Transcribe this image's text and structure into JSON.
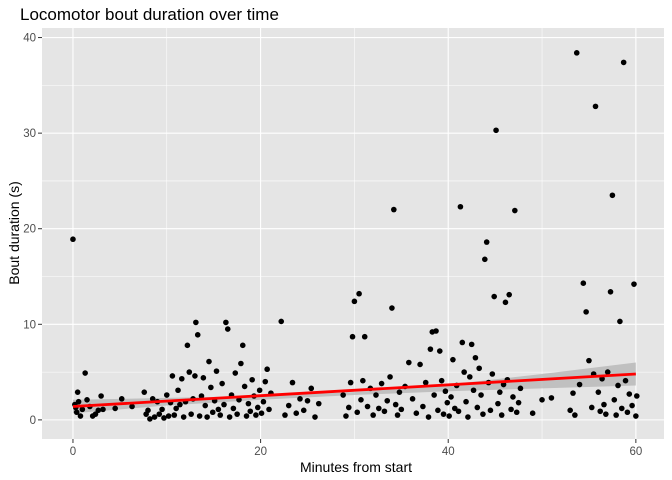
{
  "chart_data": {
    "type": "scatter",
    "title": "Locomotor bout duration over time",
    "xlabel": "Minutes from start",
    "ylabel": "Bout duration (s)",
    "xlim": [
      -3.3,
      63.0
    ],
    "ylim": [
      -2.0,
      41.0
    ],
    "x_ticks": [
      0,
      20,
      40,
      60
    ],
    "y_ticks": [
      0,
      10,
      20,
      30,
      40
    ],
    "grid": true,
    "panel_background": "#e5e5e5",
    "grid_color": "#ffffff",
    "point_color": "#000000",
    "trend_color": "#ff0000",
    "band_color": "#b3b3b3",
    "points": [
      [
        0.0,
        18.9
      ],
      [
        0.2,
        1.6
      ],
      [
        0.3,
        1.3
      ],
      [
        0.4,
        0.8
      ],
      [
        0.5,
        2.9
      ],
      [
        0.6,
        1.9
      ],
      [
        0.8,
        0.4
      ],
      [
        1.0,
        1.1
      ],
      [
        1.3,
        4.9
      ],
      [
        1.5,
        2.1
      ],
      [
        1.8,
        1.4
      ],
      [
        2.1,
        0.4
      ],
      [
        2.4,
        0.6
      ],
      [
        2.7,
        1.0
      ],
      [
        3.0,
        2.5
      ],
      [
        3.2,
        1.1
      ],
      [
        4.5,
        1.2
      ],
      [
        5.2,
        2.2
      ],
      [
        6.3,
        1.4
      ],
      [
        7.6,
        2.9
      ],
      [
        7.8,
        0.6
      ],
      [
        8.0,
        1.0
      ],
      [
        8.2,
        0.1
      ],
      [
        8.5,
        2.2
      ],
      [
        8.7,
        0.3
      ],
      [
        9.0,
        1.9
      ],
      [
        9.2,
        0.6
      ],
      [
        9.5,
        1.1
      ],
      [
        9.7,
        0.2
      ],
      [
        10.0,
        2.6
      ],
      [
        10.2,
        0.4
      ],
      [
        10.4,
        1.8
      ],
      [
        10.6,
        4.6
      ],
      [
        10.8,
        0.5
      ],
      [
        11.0,
        1.2
      ],
      [
        11.2,
        3.1
      ],
      [
        11.4,
        1.6
      ],
      [
        11.6,
        4.3
      ],
      [
        11.8,
        0.3
      ],
      [
        12.0,
        1.9
      ],
      [
        12.2,
        7.8
      ],
      [
        12.4,
        5.0
      ],
      [
        12.6,
        0.6
      ],
      [
        12.8,
        2.2
      ],
      [
        13.0,
        4.6
      ],
      [
        13.1,
        10.2
      ],
      [
        13.3,
        8.9
      ],
      [
        13.5,
        0.4
      ],
      [
        13.7,
        2.5
      ],
      [
        13.9,
        4.4
      ],
      [
        14.1,
        1.5
      ],
      [
        14.3,
        0.3
      ],
      [
        14.5,
        6.1
      ],
      [
        14.7,
        3.4
      ],
      [
        14.9,
        0.8
      ],
      [
        15.1,
        2.0
      ],
      [
        15.3,
        5.1
      ],
      [
        15.5,
        1.1
      ],
      [
        15.7,
        0.5
      ],
      [
        15.9,
        3.8
      ],
      [
        16.1,
        1.6
      ],
      [
        16.3,
        10.2
      ],
      [
        16.5,
        9.5
      ],
      [
        16.7,
        0.3
      ],
      [
        16.9,
        2.6
      ],
      [
        17.1,
        1.2
      ],
      [
        17.3,
        4.9
      ],
      [
        17.5,
        0.6
      ],
      [
        17.7,
        2.1
      ],
      [
        17.9,
        5.9
      ],
      [
        18.1,
        7.8
      ],
      [
        18.3,
        3.5
      ],
      [
        18.5,
        0.4
      ],
      [
        18.7,
        1.7
      ],
      [
        18.9,
        0.9
      ],
      [
        19.1,
        4.2
      ],
      [
        19.3,
        2.5
      ],
      [
        19.5,
        0.5
      ],
      [
        19.7,
        1.3
      ],
      [
        19.9,
        3.1
      ],
      [
        20.1,
        0.7
      ],
      [
        20.3,
        1.9
      ],
      [
        20.5,
        4.0
      ],
      [
        20.7,
        5.3
      ],
      [
        20.9,
        1.1
      ],
      [
        21.1,
        2.8
      ],
      [
        22.2,
        10.3
      ],
      [
        22.6,
        0.5
      ],
      [
        23.0,
        1.5
      ],
      [
        23.4,
        3.9
      ],
      [
        23.8,
        0.7
      ],
      [
        24.2,
        2.2
      ],
      [
        24.6,
        1.0
      ],
      [
        25.0,
        2.0
      ],
      [
        25.4,
        3.3
      ],
      [
        25.8,
        0.3
      ],
      [
        26.2,
        1.7
      ],
      [
        28.8,
        2.6
      ],
      [
        29.1,
        0.4
      ],
      [
        29.4,
        1.3
      ],
      [
        29.6,
        3.9
      ],
      [
        29.8,
        8.7
      ],
      [
        30.0,
        12.4
      ],
      [
        30.3,
        0.8
      ],
      [
        30.5,
        13.2
      ],
      [
        30.7,
        2.1
      ],
      [
        30.9,
        4.1
      ],
      [
        31.1,
        8.7
      ],
      [
        31.4,
        1.4
      ],
      [
        31.7,
        3.3
      ],
      [
        32.0,
        0.5
      ],
      [
        32.3,
        2.6
      ],
      [
        32.6,
        1.2
      ],
      [
        32.9,
        3.8
      ],
      [
        33.2,
        0.9
      ],
      [
        33.5,
        2.0
      ],
      [
        33.8,
        4.5
      ],
      [
        34.0,
        11.7
      ],
      [
        34.2,
        22.0
      ],
      [
        34.4,
        1.6
      ],
      [
        34.6,
        0.5
      ],
      [
        34.8,
        2.9
      ],
      [
        35.0,
        1.1
      ],
      [
        35.4,
        3.5
      ],
      [
        35.8,
        6.0
      ],
      [
        36.2,
        2.2
      ],
      [
        36.6,
        0.7
      ],
      [
        37.0,
        5.8
      ],
      [
        37.3,
        1.4
      ],
      [
        37.6,
        3.9
      ],
      [
        37.9,
        0.3
      ],
      [
        38.1,
        7.4
      ],
      [
        38.3,
        9.2
      ],
      [
        38.5,
        2.6
      ],
      [
        38.7,
        9.3
      ],
      [
        38.9,
        1.0
      ],
      [
        39.1,
        7.2
      ],
      [
        39.3,
        4.1
      ],
      [
        39.5,
        0.6
      ],
      [
        39.7,
        3.0
      ],
      [
        39.9,
        1.8
      ],
      [
        40.1,
        0.4
      ],
      [
        40.3,
        2.4
      ],
      [
        40.5,
        6.3
      ],
      [
        40.7,
        1.2
      ],
      [
        40.9,
        3.6
      ],
      [
        41.1,
        0.9
      ],
      [
        41.3,
        22.3
      ],
      [
        41.5,
        8.1
      ],
      [
        41.7,
        5.0
      ],
      [
        41.9,
        1.9
      ],
      [
        42.1,
        0.3
      ],
      [
        42.3,
        4.5
      ],
      [
        42.5,
        7.9
      ],
      [
        42.7,
        3.1
      ],
      [
        42.9,
        6.5
      ],
      [
        43.1,
        1.3
      ],
      [
        43.3,
        5.4
      ],
      [
        43.5,
        2.6
      ],
      [
        43.7,
        0.6
      ],
      [
        43.9,
        16.8
      ],
      [
        44.1,
        18.6
      ],
      [
        44.3,
        3.9
      ],
      [
        44.5,
        1.0
      ],
      [
        44.7,
        4.8
      ],
      [
        44.9,
        12.9
      ],
      [
        45.1,
        30.3
      ],
      [
        45.3,
        1.7
      ],
      [
        45.5,
        2.9
      ],
      [
        45.7,
        0.5
      ],
      [
        45.9,
        3.7
      ],
      [
        46.1,
        12.3
      ],
      [
        46.3,
        4.2
      ],
      [
        46.5,
        13.1
      ],
      [
        46.7,
        1.1
      ],
      [
        46.9,
        2.4
      ],
      [
        47.1,
        21.9
      ],
      [
        47.3,
        0.8
      ],
      [
        47.5,
        1.8
      ],
      [
        47.7,
        3.3
      ],
      [
        49.0,
        0.7
      ],
      [
        50.0,
        2.1
      ],
      [
        51.0,
        2.3
      ],
      [
        53.0,
        1.0
      ],
      [
        53.3,
        2.8
      ],
      [
        53.5,
        0.5
      ],
      [
        53.7,
        38.4
      ],
      [
        54.0,
        3.7
      ],
      [
        54.4,
        14.3
      ],
      [
        54.7,
        11.3
      ],
      [
        55.0,
        6.2
      ],
      [
        55.3,
        1.3
      ],
      [
        55.5,
        4.8
      ],
      [
        55.7,
        32.8
      ],
      [
        56.0,
        2.9
      ],
      [
        56.2,
        0.9
      ],
      [
        56.4,
        4.3
      ],
      [
        56.6,
        1.6
      ],
      [
        56.8,
        0.6
      ],
      [
        57.0,
        5.0
      ],
      [
        57.3,
        13.4
      ],
      [
        57.5,
        23.5
      ],
      [
        57.7,
        2.1
      ],
      [
        57.9,
        0.5
      ],
      [
        58.1,
        3.6
      ],
      [
        58.3,
        10.3
      ],
      [
        58.5,
        1.2
      ],
      [
        58.7,
        37.4
      ],
      [
        58.9,
        4.1
      ],
      [
        59.1,
        0.8
      ],
      [
        59.3,
        2.7
      ],
      [
        59.6,
        1.5
      ],
      [
        59.8,
        14.2
      ],
      [
        60.0,
        0.4
      ],
      [
        60.1,
        2.5
      ]
    ],
    "trend_line": [
      [
        0,
        1.4
      ],
      [
        60,
        4.8
      ]
    ],
    "confidence_band": {
      "x": [
        0,
        10,
        20,
        30,
        40,
        50,
        60
      ],
      "lower": [
        0.7,
        1.5,
        2.1,
        2.6,
        3.0,
        3.3,
        3.6
      ],
      "upper": [
        2.1,
        2.3,
        2.5,
        2.9,
        3.7,
        4.8,
        6.0
      ]
    }
  }
}
